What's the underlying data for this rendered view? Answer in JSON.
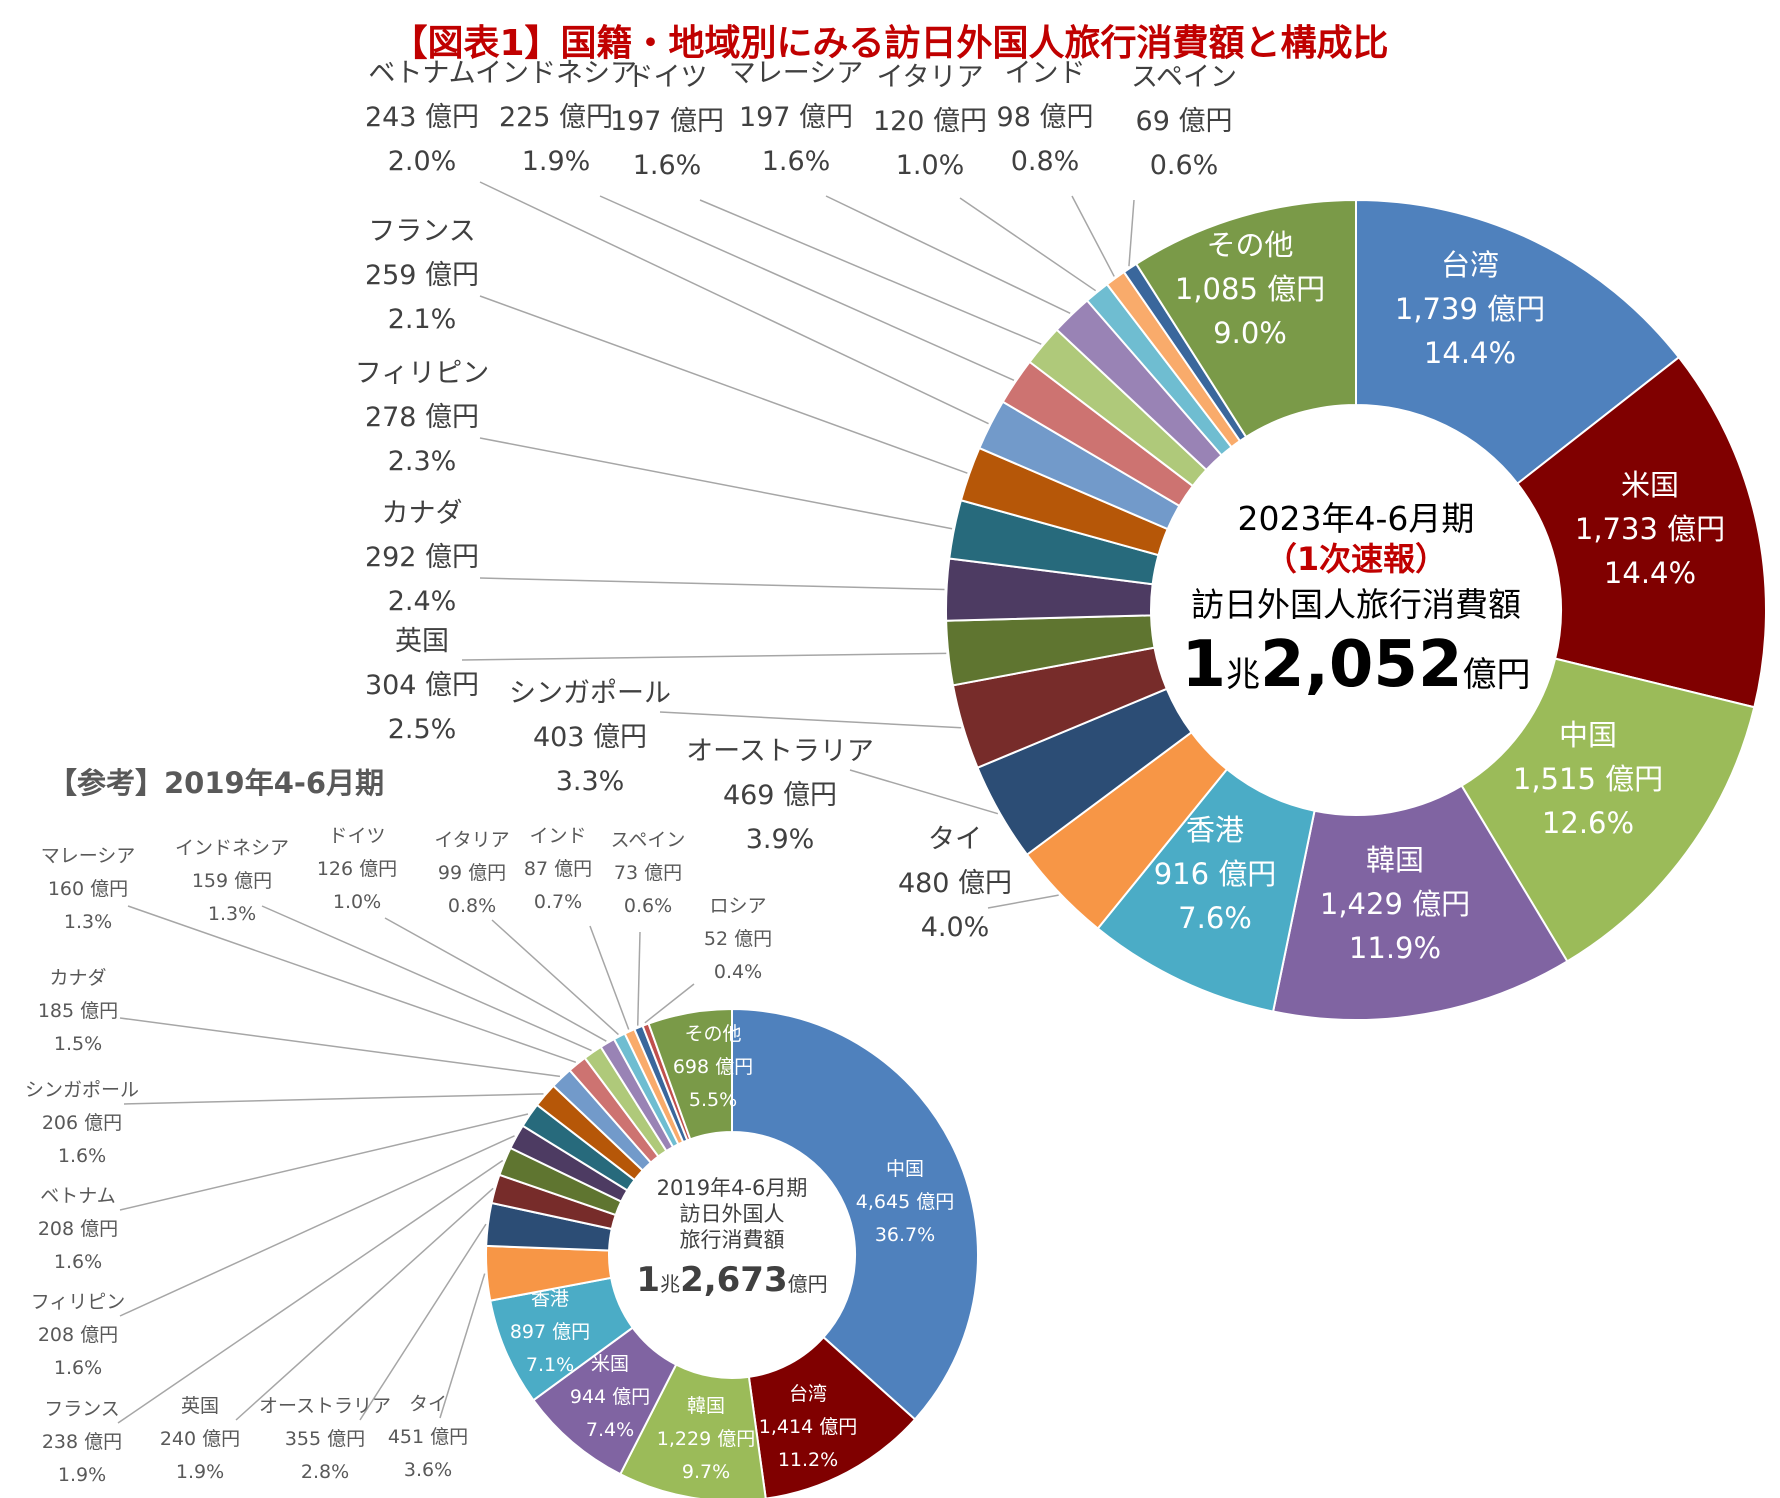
{
  "title": "【図表1】国籍・地域別にみる訪日外国人旅行消費額と構成比",
  "ref_title": "【参考】2019年4-6月期",
  "chart_data": [
    {
      "type": "pie",
      "donut": true,
      "period": "2023年4-6月期",
      "center_text": [
        "2023年4-6月期",
        "（1次速報）",
        "訪日外国人旅行消費額"
      ],
      "total": {
        "main1": "1",
        "unit1": "兆",
        "main2": "2,052",
        "unit2": "億円"
      },
      "unit": "億円",
      "slices": [
        {
          "name": "台湾",
          "value": 1739,
          "value_label": "1,739 億円",
          "pct": "14.4%",
          "color": "#4f81bd",
          "label": "inside"
        },
        {
          "name": "米国",
          "value": 1733,
          "value_label": "1,733 億円",
          "pct": "14.4%",
          "color": "#800000",
          "label": "inside"
        },
        {
          "name": "中国",
          "value": 1515,
          "value_label": "1,515 億円",
          "pct": "12.6%",
          "color": "#9bbb59",
          "label": "inside"
        },
        {
          "name": "韓国",
          "value": 1429,
          "value_label": "1,429 億円",
          "pct": "11.9%",
          "color": "#8064a2",
          "label": "inside"
        },
        {
          "name": "香港",
          "value": 916,
          "value_label": "916 億円",
          "pct": "7.6%",
          "color": "#4bacc6",
          "label": "inside"
        },
        {
          "name": "タイ",
          "value": 480,
          "value_label": "480 億円",
          "pct": "4.0%",
          "color": "#f79646",
          "label": "outside"
        },
        {
          "name": "オーストラリア",
          "value": 469,
          "value_label": "469 億円",
          "pct": "3.9%",
          "color": "#2c4d75",
          "label": "outside"
        },
        {
          "name": "シンガポール",
          "value": 403,
          "value_label": "403 億円",
          "pct": "3.3%",
          "color": "#772c2a",
          "label": "outside"
        },
        {
          "name": "英国",
          "value": 304,
          "value_label": "304 億円",
          "pct": "2.5%",
          "color": "#5f7530",
          "label": "outside"
        },
        {
          "name": "カナダ",
          "value": 292,
          "value_label": "292 億円",
          "pct": "2.4%",
          "color": "#4d3b62",
          "label": "outside"
        },
        {
          "name": "フィリピン",
          "value": 278,
          "value_label": "278 億円",
          "pct": "2.3%",
          "color": "#276a7c",
          "label": "outside"
        },
        {
          "name": "フランス",
          "value": 259,
          "value_label": "259 億円",
          "pct": "2.1%",
          "color": "#b65708",
          "label": "outside"
        },
        {
          "name": "ベトナム",
          "value": 243,
          "value_label": "243 億円",
          "pct": "2.0%",
          "color": "#729aca",
          "label": "outside"
        },
        {
          "name": "インドネシア",
          "value": 225,
          "value_label": "225 億円",
          "pct": "1.9%",
          "color": "#cd7371",
          "label": "outside"
        },
        {
          "name": "ドイツ",
          "value": 197,
          "value_label": "197 億円",
          "pct": "1.6%",
          "color": "#afc97a",
          "label": "outside"
        },
        {
          "name": "マレーシア",
          "value": 197,
          "value_label": "197 億円",
          "pct": "1.6%",
          "color": "#9983b5",
          "label": "outside"
        },
        {
          "name": "イタリア",
          "value": 120,
          "value_label": "120 億円",
          "pct": "1.0%",
          "color": "#6fbdd1",
          "label": "outside"
        },
        {
          "name": "インド",
          "value": 98,
          "value_label": "98 億円",
          "pct": "0.8%",
          "color": "#f9ab6b",
          "label": "outside"
        },
        {
          "name": "スペイン",
          "value": 69,
          "value_label": "69 億円",
          "pct": "0.6%",
          "color": "#3a679c",
          "label": "outside"
        },
        {
          "name": "その他",
          "value": 1085,
          "value_label": "1,085 億円",
          "pct": "9.0%",
          "color": "#7a9a48",
          "label": "inside"
        }
      ]
    },
    {
      "type": "pie",
      "donut": true,
      "period": "2019年4-6月期",
      "center_text": [
        "2019年4-6月期",
        "訪日外国人",
        "旅行消費額"
      ],
      "total": {
        "main1": "1",
        "unit1": "兆",
        "main2": "2,673",
        "unit2": "億円"
      },
      "unit": "億円",
      "slices": [
        {
          "name": "中国",
          "value": 4645,
          "value_label": "4,645 億円",
          "pct": "36.7%",
          "color": "#4f81bd",
          "label": "inside"
        },
        {
          "name": "台湾",
          "value": 1414,
          "value_label": "1,414 億円",
          "pct": "11.2%",
          "color": "#800000",
          "label": "inside"
        },
        {
          "name": "韓国",
          "value": 1229,
          "value_label": "1,229 億円",
          "pct": "9.7%",
          "color": "#9bbb59",
          "label": "inside"
        },
        {
          "name": "米国",
          "value": 944,
          "value_label": "944 億円",
          "pct": "7.4%",
          "color": "#8064a2",
          "label": "inside"
        },
        {
          "name": "香港",
          "value": 897,
          "value_label": "897 億円",
          "pct": "7.1%",
          "color": "#4bacc6",
          "label": "inside"
        },
        {
          "name": "タイ",
          "value": 451,
          "value_label": "451 億円",
          "pct": "3.6%",
          "color": "#f79646",
          "label": "outside"
        },
        {
          "name": "オーストラリア",
          "value": 355,
          "value_label": "355 億円",
          "pct": "2.8%",
          "color": "#2c4d75",
          "label": "outside"
        },
        {
          "name": "英国",
          "value": 240,
          "value_label": "240 億円",
          "pct": "1.9%",
          "color": "#772c2a",
          "label": "outside"
        },
        {
          "name": "フランス",
          "value": 238,
          "value_label": "238 億円",
          "pct": "1.9%",
          "color": "#5f7530",
          "label": "outside"
        },
        {
          "name": "フィリピン",
          "value": 208,
          "value_label": "208 億円",
          "pct": "1.6%",
          "color": "#4d3b62",
          "label": "outside"
        },
        {
          "name": "ベトナム",
          "value": 208,
          "value_label": "208 億円",
          "pct": "1.6%",
          "color": "#276a7c",
          "label": "outside"
        },
        {
          "name": "シンガポール",
          "value": 206,
          "value_label": "206 億円",
          "pct": "1.6%",
          "color": "#b65708",
          "label": "outside"
        },
        {
          "name": "カナダ",
          "value": 185,
          "value_label": "185 億円",
          "pct": "1.5%",
          "color": "#729aca",
          "label": "outside"
        },
        {
          "name": "マレーシア",
          "value": 160,
          "value_label": "160 億円",
          "pct": "1.3%",
          "color": "#cd7371",
          "label": "outside"
        },
        {
          "name": "インドネシア",
          "value": 159,
          "value_label": "159 億円",
          "pct": "1.3%",
          "color": "#afc97a",
          "label": "outside"
        },
        {
          "name": "ドイツ",
          "value": 126,
          "value_label": "126 億円",
          "pct": "1.0%",
          "color": "#9983b5",
          "label": "outside"
        },
        {
          "name": "イタリア",
          "value": 99,
          "value_label": "99 億円",
          "pct": "0.8%",
          "color": "#6fbdd1",
          "label": "outside"
        },
        {
          "name": "インド",
          "value": 87,
          "value_label": "87 億円",
          "pct": "0.7%",
          "color": "#f9ab6b",
          "label": "outside"
        },
        {
          "name": "スペイン",
          "value": 73,
          "value_label": "73 億円",
          "pct": "0.6%",
          "color": "#3a679c",
          "label": "outside"
        },
        {
          "name": "ロシア",
          "value": 52,
          "value_label": "52 億円",
          "pct": "0.4%",
          "color": "#c0504d",
          "label": "outside"
        },
        {
          "name": "その他",
          "value": 698,
          "value_label": "698 億円",
          "pct": "5.5%",
          "color": "#7a9a48",
          "label": "inside"
        }
      ]
    }
  ]
}
